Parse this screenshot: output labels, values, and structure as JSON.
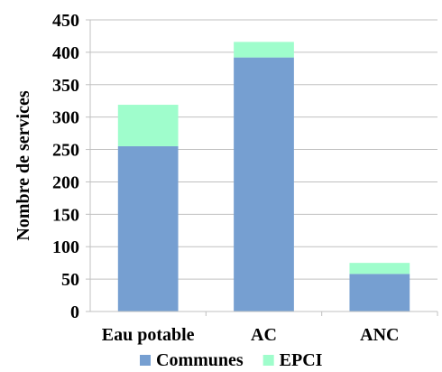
{
  "chart_data": {
    "type": "bar",
    "stacked": true,
    "categories": [
      "Eau potable",
      "AC",
      "ANC"
    ],
    "series": [
      {
        "name": "Communes",
        "values": [
          255,
          392,
          58
        ],
        "color": "#769fd1"
      },
      {
        "name": "EPCI",
        "values": [
          64,
          24,
          17
        ],
        "color": "#9ffdcc"
      }
    ],
    "ylabel": "Nombre de services",
    "xlabel": "",
    "ylim": [
      0,
      450
    ],
    "yticks": [
      0,
      50,
      100,
      150,
      200,
      250,
      300,
      350,
      400,
      450
    ],
    "grid": true,
    "grid_color": "#c0c0c0",
    "legend_position": "bottom"
  }
}
